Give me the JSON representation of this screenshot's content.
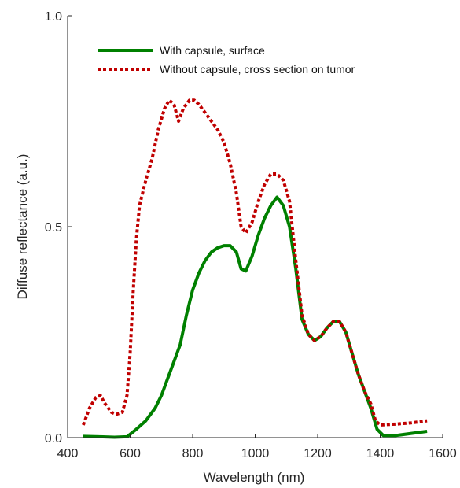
{
  "chart_data": {
    "type": "line",
    "title": "",
    "xlabel": "Wavelength (nm)",
    "ylabel": "Diffuse reflectance (a.u.)",
    "xlim": [
      400,
      1600
    ],
    "ylim": [
      0,
      1
    ],
    "x_ticks": [
      "400",
      "600",
      "800",
      "1000",
      "1200",
      "1400",
      "1600"
    ],
    "y_ticks": [
      "0.0",
      "0.5",
      "1.0"
    ],
    "grid": false,
    "legend_position": "top-left",
    "series": [
      {
        "name": "With capsule, surface",
        "color": "#008000",
        "style": "solid",
        "points": [
          [
            450,
            0.003
          ],
          [
            500,
            0.002
          ],
          [
            550,
            0.001
          ],
          [
            590,
            0.002
          ],
          [
            620,
            0.02
          ],
          [
            650,
            0.04
          ],
          [
            680,
            0.07
          ],
          [
            700,
            0.1
          ],
          [
            720,
            0.14
          ],
          [
            740,
            0.18
          ],
          [
            760,
            0.22
          ],
          [
            780,
            0.29
          ],
          [
            800,
            0.35
          ],
          [
            820,
            0.39
          ],
          [
            840,
            0.42
          ],
          [
            860,
            0.44
          ],
          [
            880,
            0.45
          ],
          [
            900,
            0.455
          ],
          [
            920,
            0.455
          ],
          [
            940,
            0.44
          ],
          [
            955,
            0.4
          ],
          [
            970,
            0.395
          ],
          [
            990,
            0.43
          ],
          [
            1010,
            0.48
          ],
          [
            1030,
            0.52
          ],
          [
            1050,
            0.55
          ],
          [
            1070,
            0.57
          ],
          [
            1090,
            0.55
          ],
          [
            1110,
            0.5
          ],
          [
            1130,
            0.4
          ],
          [
            1150,
            0.28
          ],
          [
            1170,
            0.245
          ],
          [
            1190,
            0.23
          ],
          [
            1210,
            0.24
          ],
          [
            1230,
            0.26
          ],
          [
            1250,
            0.275
          ],
          [
            1270,
            0.275
          ],
          [
            1290,
            0.25
          ],
          [
            1310,
            0.2
          ],
          [
            1330,
            0.15
          ],
          [
            1350,
            0.11
          ],
          [
            1370,
            0.07
          ],
          [
            1390,
            0.02
          ],
          [
            1410,
            0.005
          ],
          [
            1450,
            0.005
          ],
          [
            1500,
            0.01
          ],
          [
            1550,
            0.015
          ]
        ]
      },
      {
        "name": "Without capsule, cross section on tumor",
        "color": "#c00000",
        "style": "dotted",
        "points": [
          [
            450,
            0.03
          ],
          [
            470,
            0.07
          ],
          [
            490,
            0.095
          ],
          [
            505,
            0.1
          ],
          [
            520,
            0.08
          ],
          [
            540,
            0.06
          ],
          [
            555,
            0.055
          ],
          [
            575,
            0.06
          ],
          [
            590,
            0.1
          ],
          [
            600,
            0.2
          ],
          [
            610,
            0.35
          ],
          [
            620,
            0.47
          ],
          [
            630,
            0.55
          ],
          [
            650,
            0.61
          ],
          [
            670,
            0.66
          ],
          [
            690,
            0.73
          ],
          [
            710,
            0.78
          ],
          [
            725,
            0.8
          ],
          [
            740,
            0.79
          ],
          [
            755,
            0.75
          ],
          [
            770,
            0.78
          ],
          [
            790,
            0.8
          ],
          [
            805,
            0.8
          ],
          [
            820,
            0.79
          ],
          [
            840,
            0.77
          ],
          [
            860,
            0.75
          ],
          [
            880,
            0.73
          ],
          [
            900,
            0.7
          ],
          [
            920,
            0.65
          ],
          [
            940,
            0.58
          ],
          [
            955,
            0.5
          ],
          [
            970,
            0.485
          ],
          [
            990,
            0.51
          ],
          [
            1010,
            0.56
          ],
          [
            1030,
            0.6
          ],
          [
            1050,
            0.625
          ],
          [
            1070,
            0.625
          ],
          [
            1090,
            0.61
          ],
          [
            1110,
            0.56
          ],
          [
            1130,
            0.42
          ],
          [
            1150,
            0.29
          ],
          [
            1170,
            0.245
          ],
          [
            1190,
            0.23
          ],
          [
            1210,
            0.24
          ],
          [
            1230,
            0.26
          ],
          [
            1250,
            0.275
          ],
          [
            1270,
            0.275
          ],
          [
            1290,
            0.25
          ],
          [
            1310,
            0.2
          ],
          [
            1330,
            0.15
          ],
          [
            1350,
            0.11
          ],
          [
            1370,
            0.08
          ],
          [
            1385,
            0.04
          ],
          [
            1400,
            0.03
          ],
          [
            1450,
            0.032
          ],
          [
            1500,
            0.035
          ],
          [
            1550,
            0.04
          ]
        ]
      }
    ]
  }
}
